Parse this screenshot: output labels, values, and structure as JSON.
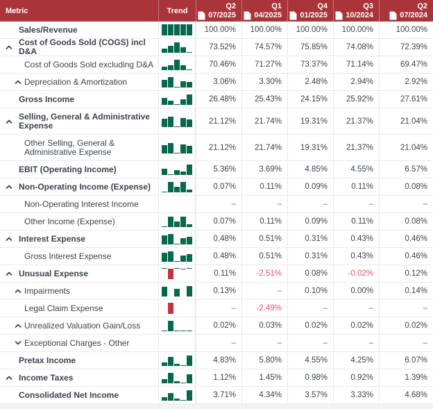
{
  "header": {
    "metric_label": "Metric",
    "trend_label": "Trend",
    "periods": [
      {
        "quarter": "Q2",
        "date": "07/2025"
      },
      {
        "quarter": "Q1",
        "date": "04/2025"
      },
      {
        "quarter": "Q4",
        "date": "01/2025"
      },
      {
        "quarter": "Q3",
        "date": "10/2024"
      },
      {
        "quarter": "Q2",
        "date": "07/2024"
      }
    ]
  },
  "colors": {
    "header_bg": "#A93439",
    "positive_bar": "#07684E",
    "negative_bar": "#C8323E",
    "negative_text": "#EB5166",
    "text": "#3A434D",
    "border": "#E8E9F2"
  },
  "rows": [
    {
      "label": "Sales/Revenue",
      "bold": true,
      "level": 1,
      "caret": null,
      "values": [
        "100.00%",
        "100.00%",
        "100.00%",
        "100.00%",
        "100.00%"
      ]
    },
    {
      "label": "Cost of Goods Sold (COGS) incl D&A",
      "bold": true,
      "level": 1,
      "caret": "up",
      "values": [
        "73.52%",
        "74.57%",
        "75.85%",
        "74.08%",
        "72.39%"
      ]
    },
    {
      "label": "Cost of Goods Sold excluding D&A",
      "bold": false,
      "level": 2,
      "caret": null,
      "values": [
        "70.46%",
        "71.27%",
        "73.37%",
        "71.14%",
        "69.47%"
      ]
    },
    {
      "label": "Depreciation & Amortization",
      "bold": false,
      "level": 2,
      "caret": "up",
      "values": [
        "3.06%",
        "3.30%",
        "2.48%",
        "2.94%",
        "2.92%"
      ]
    },
    {
      "label": "Gross Income",
      "bold": true,
      "level": 1,
      "caret": null,
      "values": [
        "26.48%",
        "25.43%",
        "24.15%",
        "25.92%",
        "27.61%"
      ]
    },
    {
      "label": "Selling, General & Administrative Expense",
      "bold": true,
      "level": 1,
      "caret": "up",
      "values": [
        "21.12%",
        "21.74%",
        "19.31%",
        "21.37%",
        "21.04%"
      ]
    },
    {
      "label": "Other Selling, General & Administrative Expense",
      "bold": false,
      "level": 2,
      "caret": null,
      "values": [
        "21.12%",
        "21.74%",
        "19.31%",
        "21.37%",
        "21.04%"
      ]
    },
    {
      "label": "EBIT (Operating Income)",
      "bold": true,
      "level": 1,
      "caret": null,
      "values": [
        "5.36%",
        "3.69%",
        "4.85%",
        "4.55%",
        "6.57%"
      ]
    },
    {
      "label": "Non-Operating Income (Expense)",
      "bold": true,
      "level": 1,
      "caret": "up",
      "values": [
        "0.07%",
        "0.11%",
        "0.09%",
        "0.11%",
        "0.08%"
      ]
    },
    {
      "label": "Non-Operating Interest Income",
      "bold": false,
      "level": 2,
      "caret": null,
      "values": [
        "–",
        "–",
        "–",
        "–",
        "–"
      ]
    },
    {
      "label": "Other Income (Expense)",
      "bold": false,
      "level": 2,
      "caret": null,
      "values": [
        "0.07%",
        "0.11%",
        "0.09%",
        "0.11%",
        "0.08%"
      ]
    },
    {
      "label": "Interest Expense",
      "bold": true,
      "level": 1,
      "caret": "up",
      "values": [
        "0.48%",
        "0.51%",
        "0.31%",
        "0.43%",
        "0.46%"
      ]
    },
    {
      "label": "Gross Interest Expense",
      "bold": false,
      "level": 2,
      "caret": null,
      "values": [
        "0.48%",
        "0.51%",
        "0.31%",
        "0.43%",
        "0.46%"
      ]
    },
    {
      "label": "Unusual Expense",
      "bold": true,
      "level": 1,
      "caret": "up",
      "values": [
        "0.11%",
        "-2.51%",
        "0.08%",
        "-0.02%",
        "0.12%"
      ]
    },
    {
      "label": "Impairments",
      "bold": false,
      "level": 2,
      "caret": "up",
      "values": [
        "0.13%",
        "–",
        "0.10%",
        "0.00%",
        "0.14%"
      ]
    },
    {
      "label": "Legal Claim Expense",
      "bold": false,
      "level": 2,
      "caret": null,
      "values": [
        "–",
        "-2.49%",
        "–",
        "–",
        "–"
      ]
    },
    {
      "label": "Unrealized Valuation Gain/Loss",
      "bold": false,
      "level": 2,
      "caret": "up",
      "values": [
        "0.02%",
        "0.03%",
        "0.02%",
        "0.02%",
        "0.02%"
      ]
    },
    {
      "label": "Exceptional Charges - Other",
      "bold": false,
      "level": 2,
      "caret": "down",
      "values": [
        "–",
        "–",
        "–",
        "–",
        "–"
      ]
    },
    {
      "label": "Pretax Income",
      "bold": true,
      "level": 1,
      "caret": null,
      "values": [
        "4.83%",
        "5.80%",
        "4.55%",
        "4.25%",
        "6.07%"
      ]
    },
    {
      "label": "Income Taxes",
      "bold": true,
      "level": 1,
      "caret": "up",
      "values": [
        "1.12%",
        "1.45%",
        "0.98%",
        "0.92%",
        "1.39%"
      ]
    },
    {
      "label": "Consolidated Net Income",
      "bold": true,
      "level": 1,
      "caret": null,
      "values": [
        "3.71%",
        "4.34%",
        "3.57%",
        "3.33%",
        "4.68%"
      ]
    }
  ]
}
